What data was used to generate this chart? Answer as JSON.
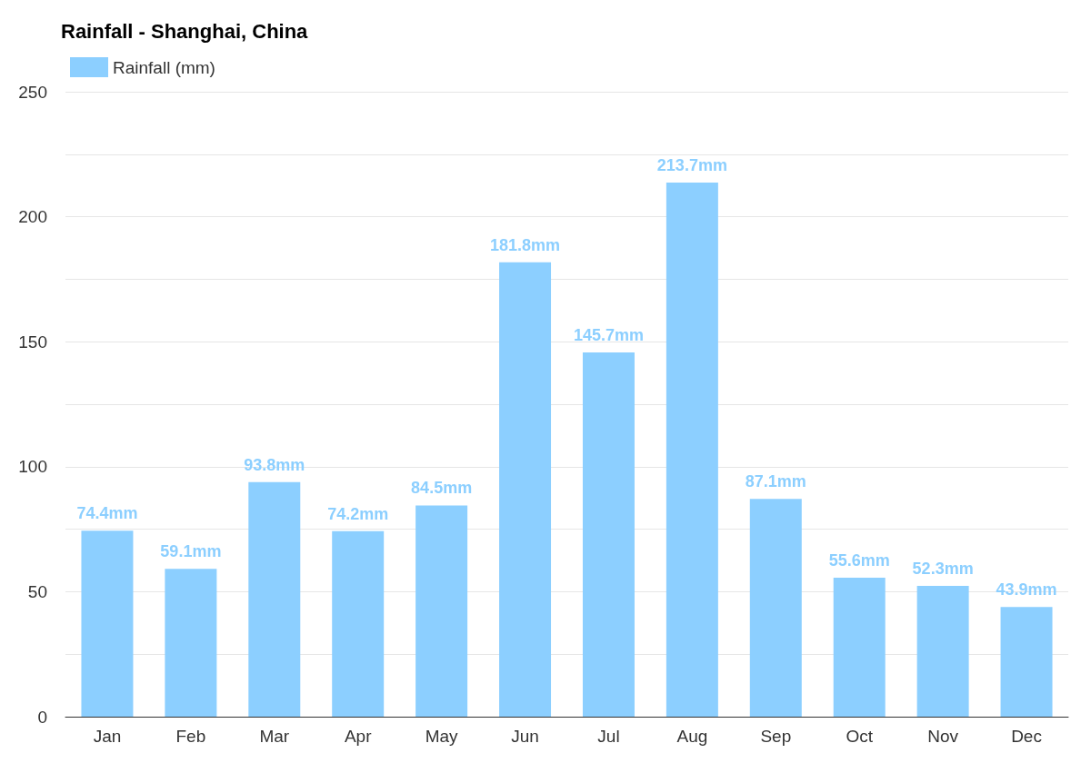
{
  "chart_data": {
    "type": "bar",
    "title": "Rainfall - Shanghai, China",
    "categories": [
      "Jan",
      "Feb",
      "Mar",
      "Apr",
      "May",
      "Jun",
      "Jul",
      "Aug",
      "Sep",
      "Oct",
      "Nov",
      "Dec"
    ],
    "series": [
      {
        "name": "Rainfall (mm)",
        "color": "#8ccfff",
        "values": [
          74.4,
          59.1,
          93.8,
          74.2,
          84.5,
          181.8,
          145.7,
          213.7,
          87.1,
          55.6,
          52.3,
          43.9
        ],
        "value_labels": [
          "74.4mm",
          "59.1mm",
          "93.8mm",
          "74.2mm",
          "84.5mm",
          "181.8mm",
          "145.7mm",
          "213.7mm",
          "87.1mm",
          "55.6mm",
          "52.3mm",
          "43.9mm"
        ]
      }
    ],
    "ylim": [
      0,
      250
    ],
    "yticks": [
      0,
      {
        "value": 25,
        "label": null
      },
      50,
      {
        "value": 75,
        "label": null
      },
      100,
      {
        "value": 125,
        "label": null
      },
      150,
      {
        "value": 175,
        "label": null
      },
      200,
      {
        "value": 225,
        "label": null
      },
      250
    ],
    "grid": "y",
    "legend": "top left"
  }
}
